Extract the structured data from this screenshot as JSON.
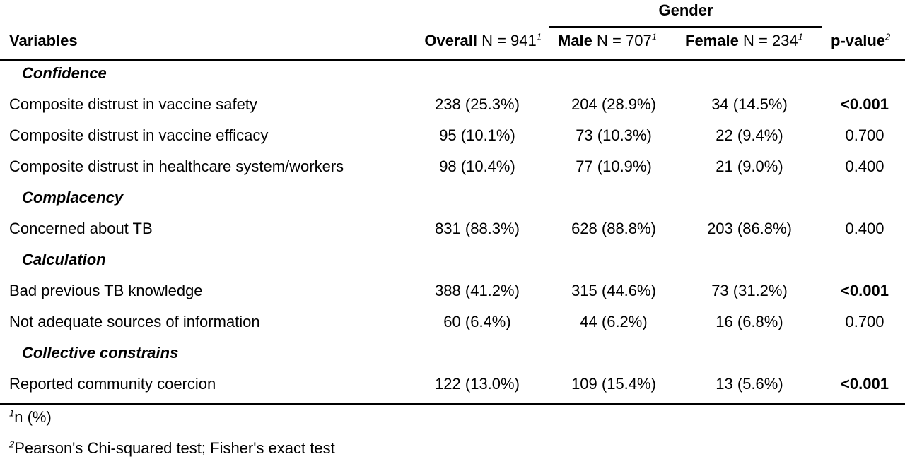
{
  "header": {
    "group": "Gender",
    "variables": "Variables",
    "overall_bold": "Overall",
    "overall_n": " N = 941",
    "male_bold": "Male",
    "male_n": " N = 707",
    "female_bold": "Female",
    "female_n": " N = 234",
    "pvalue_bold": "p-value",
    "sup1": "1",
    "sup2": "2"
  },
  "sections": [
    {
      "title": "Confidence",
      "rows": [
        {
          "label": "Composite distrust in vaccine safety",
          "overall": "238 (25.3%)",
          "male": "204 (28.9%)",
          "female": "34 (14.5%)",
          "p": "<0.001",
          "p_bold": true
        },
        {
          "label": "Composite distrust in vaccine efficacy",
          "overall": "95 (10.1%)",
          "male": "73 (10.3%)",
          "female": "22 (9.4%)",
          "p": "0.700",
          "p_bold": false
        },
        {
          "label": "Composite distrust in healthcare system/workers",
          "overall": "98 (10.4%)",
          "male": "77 (10.9%)",
          "female": "21 (9.0%)",
          "p": "0.400",
          "p_bold": false
        }
      ]
    },
    {
      "title": "Complacency",
      "rows": [
        {
          "label": "Concerned about TB",
          "overall": "831 (88.3%)",
          "male": "628 (88.8%)",
          "female": "203 (86.8%)",
          "p": "0.400",
          "p_bold": false
        }
      ]
    },
    {
      "title": "Calculation",
      "rows": [
        {
          "label": "Bad previous TB knowledge",
          "overall": "388 (41.2%)",
          "male": "315 (44.6%)",
          "female": "73 (31.2%)",
          "p": "<0.001",
          "p_bold": true
        },
        {
          "label": "Not adequate sources of information",
          "overall": "60 (6.4%)",
          "male": "44 (6.2%)",
          "female": "16 (6.8%)",
          "p": "0.700",
          "p_bold": false
        }
      ]
    },
    {
      "title": "Collective constrains",
      "rows": [
        {
          "label": "Reported community coercion",
          "overall": "122 (13.0%)",
          "male": "109 (15.4%)",
          "female": "13 (5.6%)",
          "p": "<0.001",
          "p_bold": true
        }
      ]
    }
  ],
  "footnotes": [
    {
      "sup": "1",
      "text": "n (%)"
    },
    {
      "sup": "2",
      "text": "Pearson's Chi-squared test; Fisher's exact test"
    }
  ]
}
